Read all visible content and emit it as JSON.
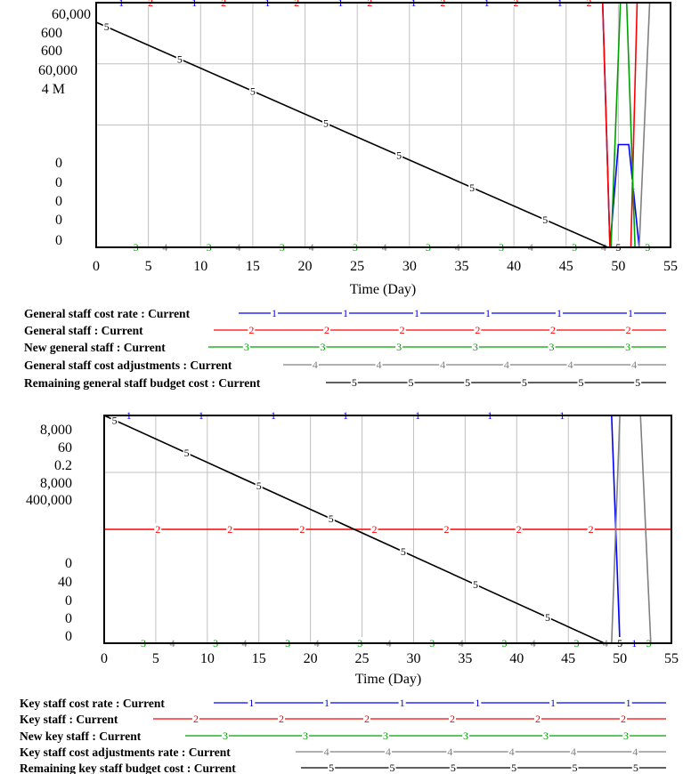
{
  "chart_data": [
    {
      "type": "line",
      "xlabel": "Time (Day)",
      "xlim": [
        0,
        55
      ],
      "x_ticks": [
        "0",
        "5",
        "10",
        "15",
        "20",
        "25",
        "30",
        "35",
        "40",
        "45",
        "50",
        "55"
      ],
      "y_scale_labels": {
        "series1": "60,000",
        "series2": "600",
        "series3": "600",
        "series4": "60,000",
        "series5": "4 M",
        "bottom": [
          "0",
          "0",
          "0",
          "0"
        ]
      },
      "series": [
        {
          "name": "General staff cost rate : Current",
          "marker": "1",
          "color": "#0000ff",
          "points": [
            [
              0,
              1.0
            ],
            [
              48.5,
              1.0
            ],
            [
              49.2,
              0.0
            ],
            [
              50,
              0.42
            ],
            [
              51,
              0.42
            ],
            [
              52,
              0.0
            ],
            [
              55,
              0.0
            ]
          ]
        },
        {
          "name": "General staff : Current",
          "marker": "2",
          "color": "#ff0000",
          "points": [
            [
              0,
              1.0
            ],
            [
              48.5,
              1.0
            ],
            [
              49.2,
              0.0
            ],
            [
              51.2,
              0.0
            ],
            [
              51.8,
              1.0
            ],
            [
              55,
              1.0
            ]
          ]
        },
        {
          "name": "New general staff : Current",
          "marker": "3",
          "color": "#00a000",
          "points": [
            [
              0,
              0.0
            ],
            [
              49.3,
              0.0
            ],
            [
              50.2,
              1.0
            ],
            [
              50.8,
              1.0
            ],
            [
              51.6,
              0.0
            ],
            [
              55,
              0.0
            ]
          ]
        },
        {
          "name": "General staff cost adjustments : Current",
          "marker": "4",
          "color": "#808080",
          "points": [
            [
              0,
              0.0
            ],
            [
              52,
              0.0
            ],
            [
              53,
              1.0
            ],
            [
              55,
              1.0
            ]
          ]
        },
        {
          "name": "Remaining general staff budget cost : Current",
          "marker": "5",
          "color": "#000000",
          "points": [
            [
              0,
              0.92
            ],
            [
              49,
              0.0
            ],
            [
              55,
              0.0
            ]
          ]
        }
      ]
    },
    {
      "type": "line",
      "xlabel": "Time (Day)",
      "xlim": [
        0,
        55
      ],
      "x_ticks": [
        "0",
        "5",
        "10",
        "15",
        "20",
        "25",
        "30",
        "35",
        "40",
        "45",
        "50",
        "55"
      ],
      "y_scale_labels": {
        "series1": "8,000",
        "series2": "60",
        "series3": "0.2",
        "series4": "8,000",
        "series5": "400,000",
        "middle": "40",
        "bottom": [
          "0",
          "0",
          "0",
          "0"
        ]
      },
      "series": [
        {
          "name": "Key staff cost rate : Current",
          "marker": "1",
          "color": "#0000ff",
          "points": [
            [
              0,
              1.0
            ],
            [
              49.2,
              1.0
            ],
            [
              50,
              0.0
            ],
            [
              55,
              0.0
            ]
          ]
        },
        {
          "name": "Key staff : Current",
          "marker": "2",
          "color": "#ff0000",
          "points": [
            [
              0,
              0.5
            ],
            [
              55,
              0.5
            ]
          ]
        },
        {
          "name": "New key staff : Current",
          "marker": "3",
          "color": "#00a000",
          "points": [
            [
              0,
              0.0
            ],
            [
              55,
              0.0
            ]
          ]
        },
        {
          "name": "Key staff cost adjustments rate : Current",
          "marker": "4",
          "color": "#808080",
          "points": [
            [
              0,
              0.0
            ],
            [
              49.2,
              0.0
            ],
            [
              50,
              1.0
            ],
            [
              52,
              1.0
            ],
            [
              53,
              0.0
            ],
            [
              55,
              0.0
            ]
          ]
        },
        {
          "name": "Remaining key staff budget cost : Current",
          "marker": "5",
          "color": "#000000",
          "points": [
            [
              0,
              1.0
            ],
            [
              48.5,
              0.0
            ],
            [
              55,
              0.0
            ]
          ]
        }
      ]
    }
  ]
}
